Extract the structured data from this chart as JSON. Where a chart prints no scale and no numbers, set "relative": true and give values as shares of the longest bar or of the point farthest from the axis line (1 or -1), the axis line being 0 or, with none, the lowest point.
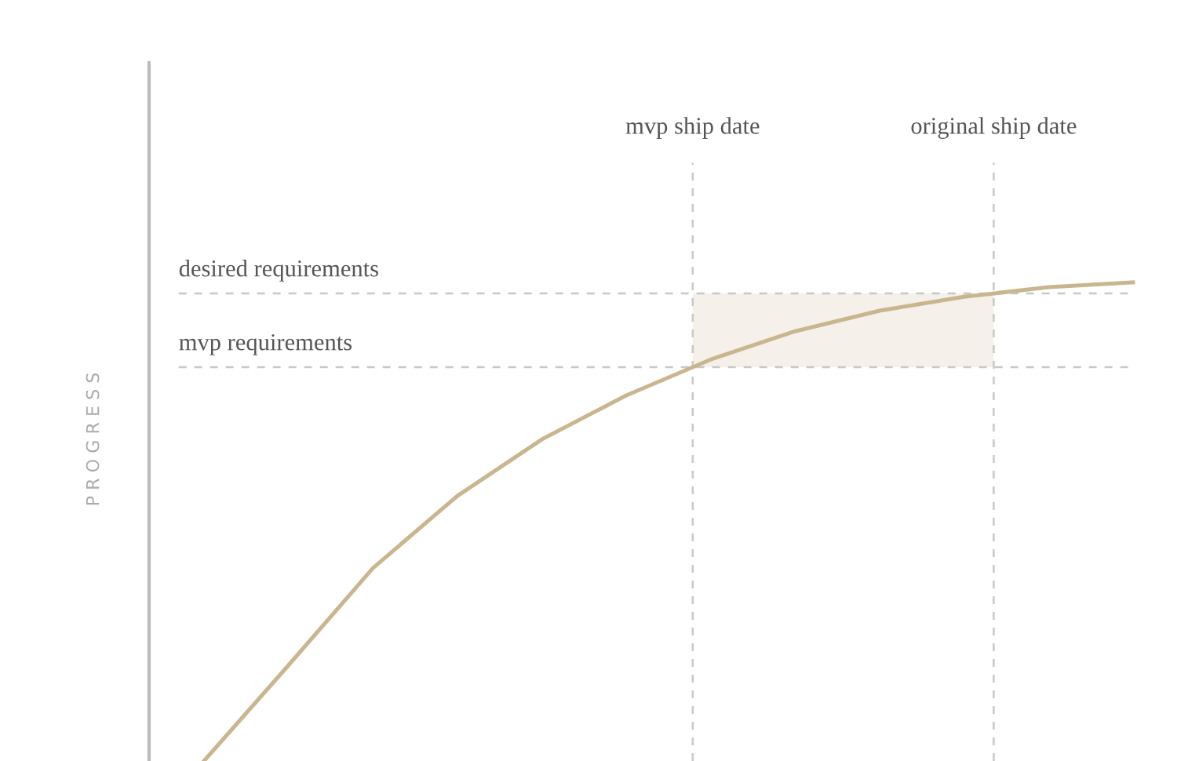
{
  "chart_data": {
    "type": "line",
    "relative": true,
    "ylabel": "P R O G R E S S",
    "categories": [
      null,
      null,
      null,
      null,
      null,
      null,
      null,
      null,
      null,
      null,
      null,
      null
    ],
    "series": [
      {
        "color": "#c9b68f",
        "values": [
          0,
          0.2,
          0.403,
          0.554,
          0.672,
          0.764,
          0.839,
          0.898,
          0.941,
          0.97,
          0.99,
          1.0
        ]
      }
    ],
    "ref_lines": [
      {
        "axis": "y",
        "value": 0.823,
        "label": "mvp requirements",
        "color": "#c8c8c8",
        "line_style": "dashed"
      },
      {
        "axis": "y",
        "value": 0.977,
        "label": "desired requirements",
        "color": "#c8c8c8",
        "line_style": "dashed"
      }
    ],
    "annotations": [
      "mvp ship date",
      "original ship date"
    ],
    "bands": [
      {
        "axis": "y",
        "from": 0.823,
        "to": 0.977,
        "color": "#f5f1ea"
      }
    ],
    "marker": "none",
    "line_style": "solid"
  }
}
